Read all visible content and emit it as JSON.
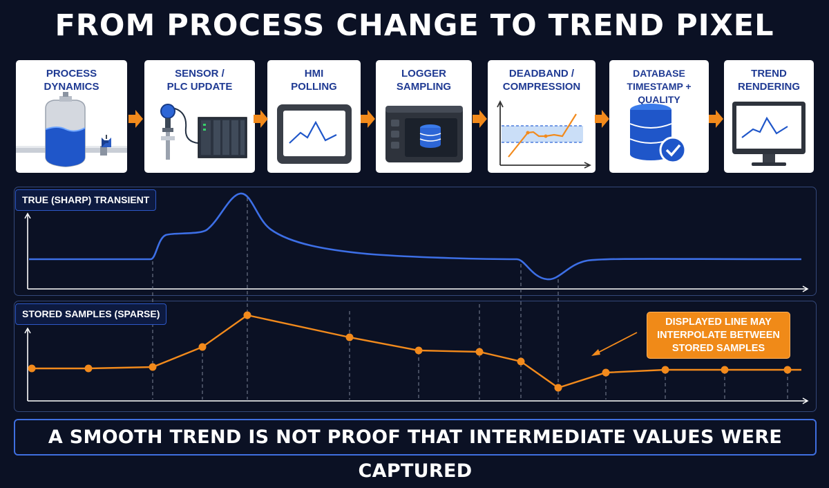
{
  "title": "FROM PROCESS CHANGE TO TREND PIXEL",
  "stages": [
    {
      "line1": "PROCESS",
      "line2": "DYNAMICS",
      "icon": "tank-icon"
    },
    {
      "line1": "SENSOR /",
      "line2": "PLC UPDATE",
      "icon": "sensor-plc-icon"
    },
    {
      "line1": "HMI",
      "line2": "POLLING",
      "icon": "hmi-screen-icon"
    },
    {
      "line1": "LOGGER",
      "line2": "SAMPLING",
      "icon": "logger-icon"
    },
    {
      "line1": "DEADBAND /",
      "line2": "COMPRESSION",
      "icon": "deadband-chart-icon"
    },
    {
      "line1": "DATABASE",
      "line2": "TIMESTAMP + QUALITY",
      "icon": "database-check-icon"
    },
    {
      "line1": "TREND",
      "line2": "RENDERING",
      "icon": "monitor-trend-icon"
    }
  ],
  "true_panel": {
    "label": "TRUE (SHARP) TRANSIENT"
  },
  "stored_panel": {
    "label": "STORED SAMPLES (SPARSE)"
  },
  "callout": {
    "line1": "DISPLAYED LINE MAY",
    "line2": "INTERPOLATE BETWEEN",
    "line3": "STORED SAMPLES"
  },
  "footer": "A SMOOTH TREND IS NOT PROOF THAT INTERMEDIATE VALUES WERE CAPTURED",
  "colors": {
    "true_line": "#3d6fe6",
    "stored_line": "#f28a1c",
    "accent_arrow": "#f28a1c",
    "background": "#0b1124"
  }
}
